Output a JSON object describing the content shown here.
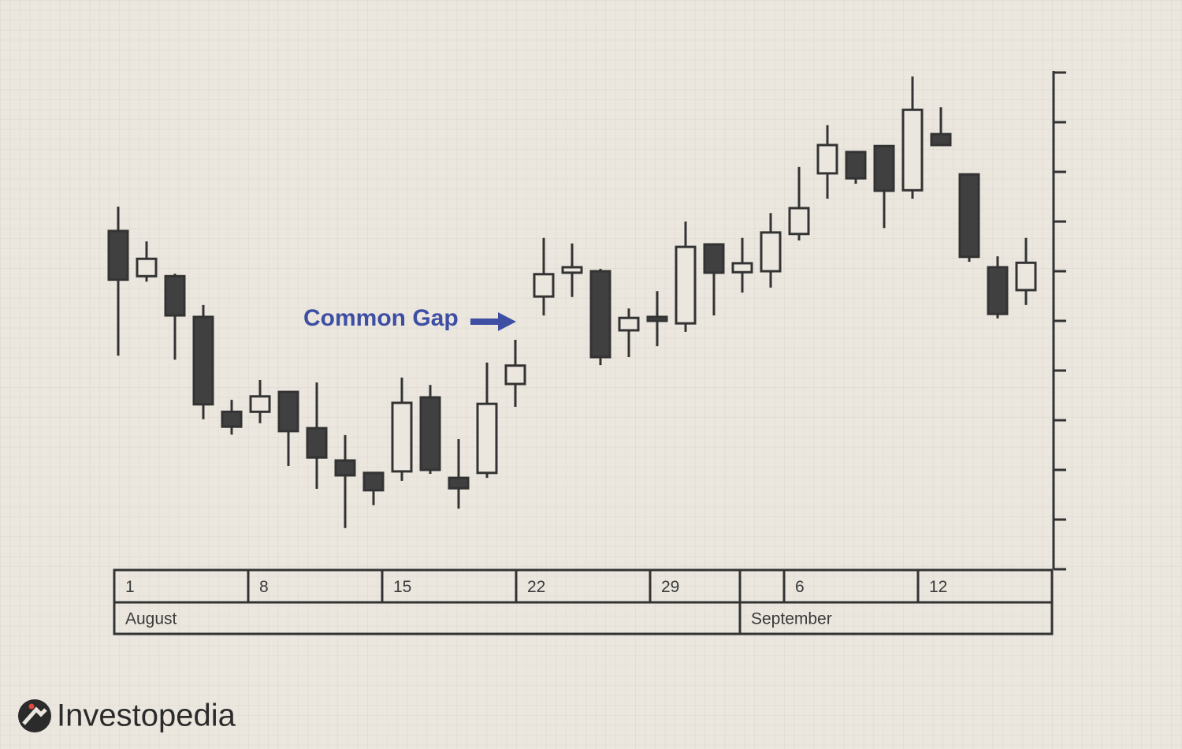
{
  "chart_data": {
    "type": "candlestick",
    "annotation": "Common Gap",
    "annotation_color": "#3e4fa3",
    "up_color": "#ebe7df",
    "down_color": "#404040",
    "edge_color": "#333333",
    "open": [
      68.1,
      59.0,
      59.0,
      50.8,
      31.7,
      31.7,
      35.7,
      28.4,
      21.9,
      19.4,
      19.7,
      34.6,
      18.4,
      19.4,
      37.3,
      54.9,
      59.7,
      60.0,
      48.1,
      50.8,
      49.5,
      65.4,
      59.8,
      60.0,
      67.5,
      79.7,
      84.0,
      85.2,
      76.3,
      87.6,
      79.5,
      60.8,
      56.2
    ],
    "high": [
      73.0,
      66.0,
      59.5,
      53.2,
      34.1,
      38.1,
      35.7,
      37.6,
      27.0,
      19.4,
      38.6,
      37.1,
      26.2,
      41.6,
      46.2,
      66.7,
      65.6,
      60.5,
      52.5,
      56.0,
      70.0,
      65.4,
      66.7,
      71.7,
      81.0,
      89.4,
      84.0,
      85.2,
      99.2,
      93.0,
      79.5,
      63.0,
      66.7
    ],
    "low": [
      43.0,
      57.9,
      42.2,
      30.2,
      27.1,
      29.4,
      20.8,
      16.2,
      8.3,
      12.9,
      17.8,
      19.2,
      12.2,
      18.4,
      32.7,
      51.1,
      54.8,
      41.1,
      42.7,
      44.9,
      47.8,
      51.1,
      55.7,
      56.7,
      66.2,
      74.6,
      77.6,
      68.7,
      74.6,
      85.4,
      61.9,
      50.5,
      53.2
    ],
    "close": [
      58.3,
      62.5,
      51.1,
      33.2,
      28.7,
      34.8,
      27.8,
      22.5,
      18.9,
      15.9,
      33.5,
      20.0,
      16.3,
      33.3,
      41.0,
      59.4,
      60.8,
      42.7,
      50.6,
      50.0,
      64.9,
      59.7,
      61.6,
      67.8,
      72.7,
      85.4,
      78.7,
      76.2,
      92.5,
      85.4,
      62.9,
      51.4,
      61.7
    ],
    "ylim": [
      0,
      100
    ],
    "yticks": [
      0,
      10,
      20,
      30,
      40,
      50,
      60,
      70,
      80,
      90,
      100
    ],
    "x_axis": {
      "weeks": [
        "1",
        "8",
        "15",
        "22",
        "29",
        "6",
        "12"
      ],
      "months": [
        "August",
        "September"
      ]
    }
  },
  "brand": "Investopedia"
}
